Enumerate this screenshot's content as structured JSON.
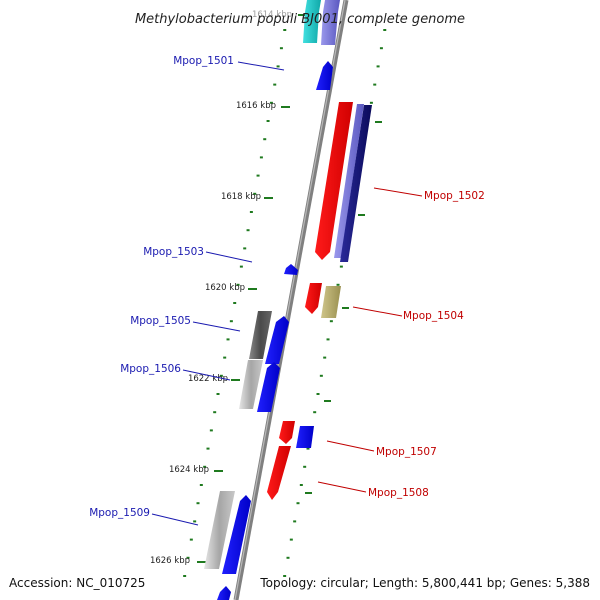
{
  "title": "Methylobacterium populi BJ001, complete genome",
  "footer": {
    "accession": "Accession: NC_010725",
    "topology": "Topology: circular; Length: 5,800,441 bp; Genes: 5,388"
  },
  "colors": {
    "backbone": "#808080",
    "tick": "#1f7a1f",
    "label_forward": "#1a1ab0",
    "label_reverse": "#c00000",
    "gene_blue": "#0a0aee",
    "gene_red": "#ee0000",
    "gene_navy": "#12127a",
    "gene_periwinkle": "#7a78d8",
    "gene_tan": "#b5ab6a",
    "gene_gray_dark": "#5a5a5a",
    "gene_gray_light": "#b8b8b8",
    "gene_cyan": "#22c4c4"
  },
  "scale": {
    "major_ticks": [
      "1614 kbp",
      "1616 kbp",
      "1618 kbp",
      "1620 kbp",
      "1622 kbp",
      "1624 kbp",
      "1626 kbp"
    ]
  },
  "genes": [
    {
      "label": "",
      "strand": "forward",
      "color": "gene_cyan"
    },
    {
      "label": "",
      "strand": "forward",
      "color": "gene_periwinkle"
    },
    {
      "label": "Mpop_1501",
      "strand": "forward",
      "color": "gene_blue"
    },
    {
      "label": "Mpop_1502",
      "strand": "reverse",
      "color": "gene_red"
    },
    {
      "label": "",
      "strand": "reverse",
      "color": "gene_periwinkle"
    },
    {
      "label": "",
      "strand": "reverse",
      "color": "gene_navy"
    },
    {
      "label": "Mpop_1503",
      "strand": "forward",
      "color": "gene_blue"
    },
    {
      "label": "",
      "strand": "reverse",
      "color": "gene_red"
    },
    {
      "label": "Mpop_1504",
      "strand": "reverse",
      "color": "gene_tan"
    },
    {
      "label": "Mpop_1505",
      "strand": "forward",
      "color": "gene_gray_dark"
    },
    {
      "label": "",
      "strand": "forward",
      "color": "gene_blue"
    },
    {
      "label": "Mpop_1506",
      "strand": "forward",
      "color": "gene_gray_light"
    },
    {
      "label": "",
      "strand": "forward",
      "color": "gene_blue"
    },
    {
      "label": "",
      "strand": "reverse",
      "color": "gene_red"
    },
    {
      "label": "Mpop_1507",
      "strand": "reverse",
      "color": "gene_blue"
    },
    {
      "label": "Mpop_1508",
      "strand": "reverse",
      "color": "gene_red"
    },
    {
      "label": "Mpop_1509",
      "strand": "forward",
      "color": "gene_gray_light"
    },
    {
      "label": "",
      "strand": "forward",
      "color": "gene_blue"
    },
    {
      "label": "",
      "strand": "forward",
      "color": "gene_blue"
    }
  ]
}
